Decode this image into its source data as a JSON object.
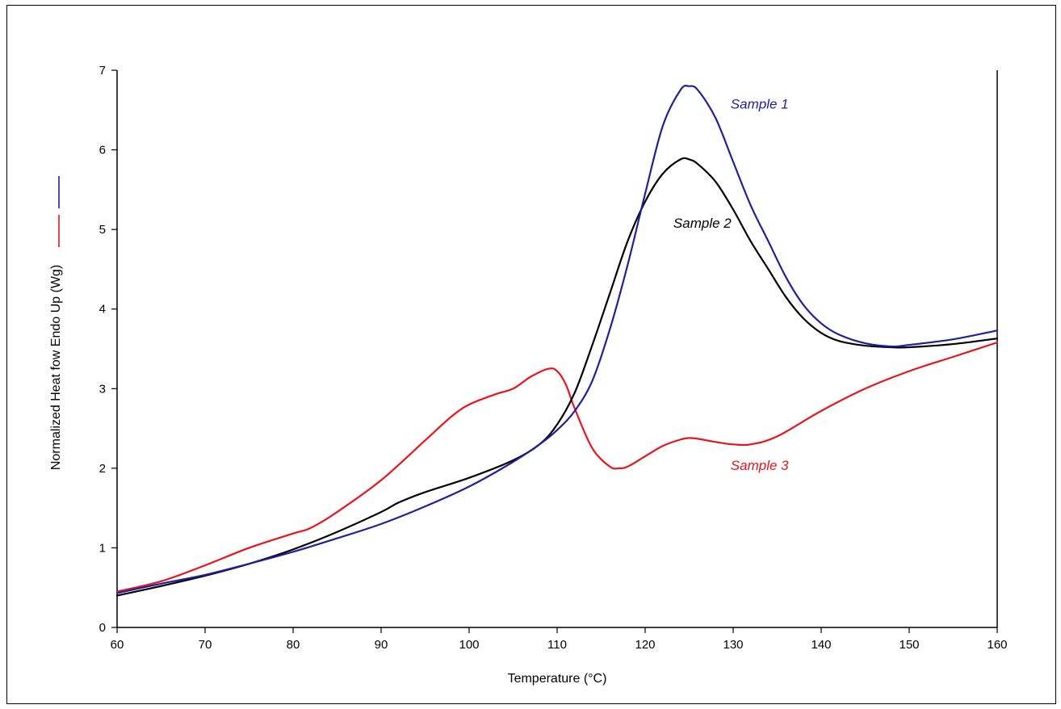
{
  "chart_data": {
    "type": "line",
    "xlabel": "Temperature (°C)",
    "ylabel": "Normalized Heat fow Endo Up (Wg)",
    "xlim": [
      60,
      160
    ],
    "ylim": [
      0,
      7
    ],
    "x_ticks": [
      "60",
      "70",
      "80",
      "90",
      "100",
      "110",
      "120",
      "130",
      "140",
      "150",
      "160"
    ],
    "y_ticks": [
      "0",
      "1",
      "2",
      "3",
      "4",
      "5",
      "6",
      "7"
    ],
    "grid": false,
    "series": [
      {
        "name": "Sample 1",
        "color": "#1f1fa0",
        "x": [
          60,
          65,
          70,
          75,
          80,
          85,
          90,
          95,
          100,
          105,
          108,
          110,
          112,
          114,
          116,
          118,
          120,
          122,
          124,
          125,
          126,
          128,
          130,
          132,
          134,
          136,
          138,
          140,
          142,
          145,
          148,
          150,
          155,
          160
        ],
        "y": [
          0.43,
          0.55,
          0.66,
          0.8,
          0.95,
          1.12,
          1.3,
          1.52,
          1.77,
          2.08,
          2.3,
          2.48,
          2.72,
          3.1,
          3.75,
          4.55,
          5.45,
          6.3,
          6.75,
          6.8,
          6.75,
          6.4,
          5.85,
          5.3,
          4.85,
          4.4,
          4.05,
          3.82,
          3.68,
          3.57,
          3.53,
          3.55,
          3.62,
          3.73
        ]
      },
      {
        "name": "Sample 2",
        "color": "#000000",
        "x": [
          60,
          65,
          70,
          75,
          80,
          85,
          90,
          92,
          95,
          100,
          105,
          108,
          110,
          112,
          114,
          116,
          118,
          120,
          122,
          124,
          125,
          126,
          128,
          130,
          132,
          134,
          136,
          138,
          140,
          142,
          145,
          148,
          150,
          155,
          160
        ],
        "y": [
          0.4,
          0.52,
          0.65,
          0.8,
          0.98,
          1.2,
          1.45,
          1.57,
          1.7,
          1.88,
          2.1,
          2.3,
          2.55,
          2.95,
          3.55,
          4.2,
          4.85,
          5.35,
          5.7,
          5.88,
          5.88,
          5.82,
          5.6,
          5.25,
          4.85,
          4.5,
          4.15,
          3.88,
          3.7,
          3.6,
          3.54,
          3.52,
          3.52,
          3.56,
          3.63
        ]
      },
      {
        "name": "Sample 3",
        "color": "#e8141c",
        "x": [
          60,
          65,
          70,
          75,
          80,
          82,
          85,
          90,
          95,
          98,
          100,
          103,
          105,
          107,
          109,
          110,
          111,
          112,
          114,
          116,
          117,
          118,
          120,
          122,
          124,
          125,
          126,
          128,
          130,
          132,
          135,
          140,
          145,
          150,
          155,
          160
        ],
        "y": [
          0.45,
          0.58,
          0.78,
          1.0,
          1.18,
          1.25,
          1.45,
          1.85,
          2.35,
          2.65,
          2.8,
          2.93,
          3.0,
          3.15,
          3.25,
          3.22,
          3.05,
          2.75,
          2.25,
          2.02,
          2.0,
          2.02,
          2.15,
          2.28,
          2.36,
          2.38,
          2.37,
          2.33,
          2.3,
          2.3,
          2.4,
          2.72,
          3.0,
          3.22,
          3.4,
          3.58
        ]
      }
    ],
    "annotations": [
      {
        "text": "Sample 1",
        "x": 133,
        "y": 6.52,
        "color": "#1f1fa0"
      },
      {
        "text": "Sample 2",
        "x": 126.5,
        "y": 5.02,
        "color": "#000000"
      },
      {
        "text": "Sample 3",
        "x": 133,
        "y": 1.98,
        "color": "#e8141c"
      }
    ]
  }
}
